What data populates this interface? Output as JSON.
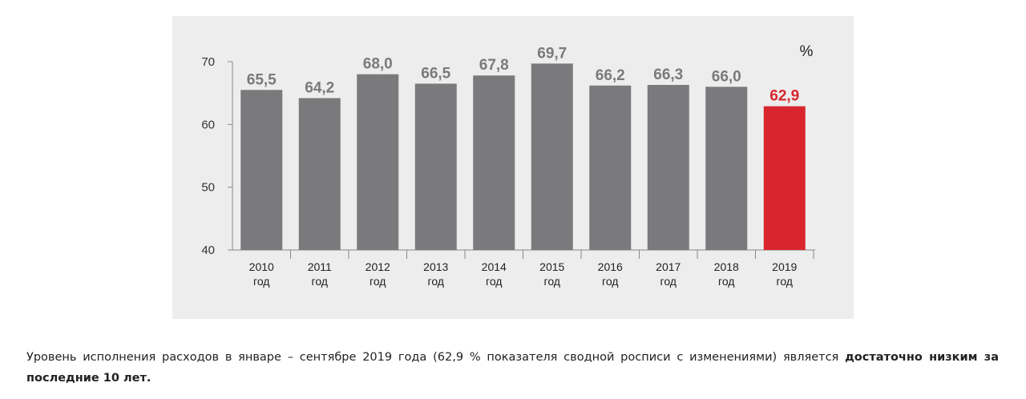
{
  "chart_data": {
    "type": "bar",
    "unit_label": "%",
    "categories": [
      [
        "2010",
        "год"
      ],
      [
        "2011",
        "год"
      ],
      [
        "2012",
        "год"
      ],
      [
        "2013",
        "год"
      ],
      [
        "2014",
        "год"
      ],
      [
        "2015",
        "год"
      ],
      [
        "2016",
        "год"
      ],
      [
        "2017",
        "год"
      ],
      [
        "2018",
        "год"
      ],
      [
        "2019",
        "год"
      ]
    ],
    "values": [
      65.5,
      64.2,
      68.0,
      66.5,
      67.8,
      69.7,
      66.2,
      66.3,
      66.0,
      62.9
    ],
    "value_labels": [
      "65,5",
      "64,2",
      "68,0",
      "66,5",
      "67,8",
      "69,7",
      "66,2",
      "66,3",
      "66,0",
      "62,9"
    ],
    "highlight_index": 9,
    "ylim": [
      40,
      70
    ],
    "yticks": [
      40,
      50,
      60,
      70
    ],
    "colors": {
      "bar": "#7a7a7d",
      "highlight": "#d9262e",
      "label": "#7a7a7d",
      "highlight_label": "#d9262e",
      "axis": "#888888"
    }
  },
  "caption": {
    "text": "Уровень исполнения расходов в январе – сентябре 2019 года (62,9 % показателя сводной росписи с изменениями) является ",
    "bold": "достаточно низким за последние 10 лет."
  }
}
